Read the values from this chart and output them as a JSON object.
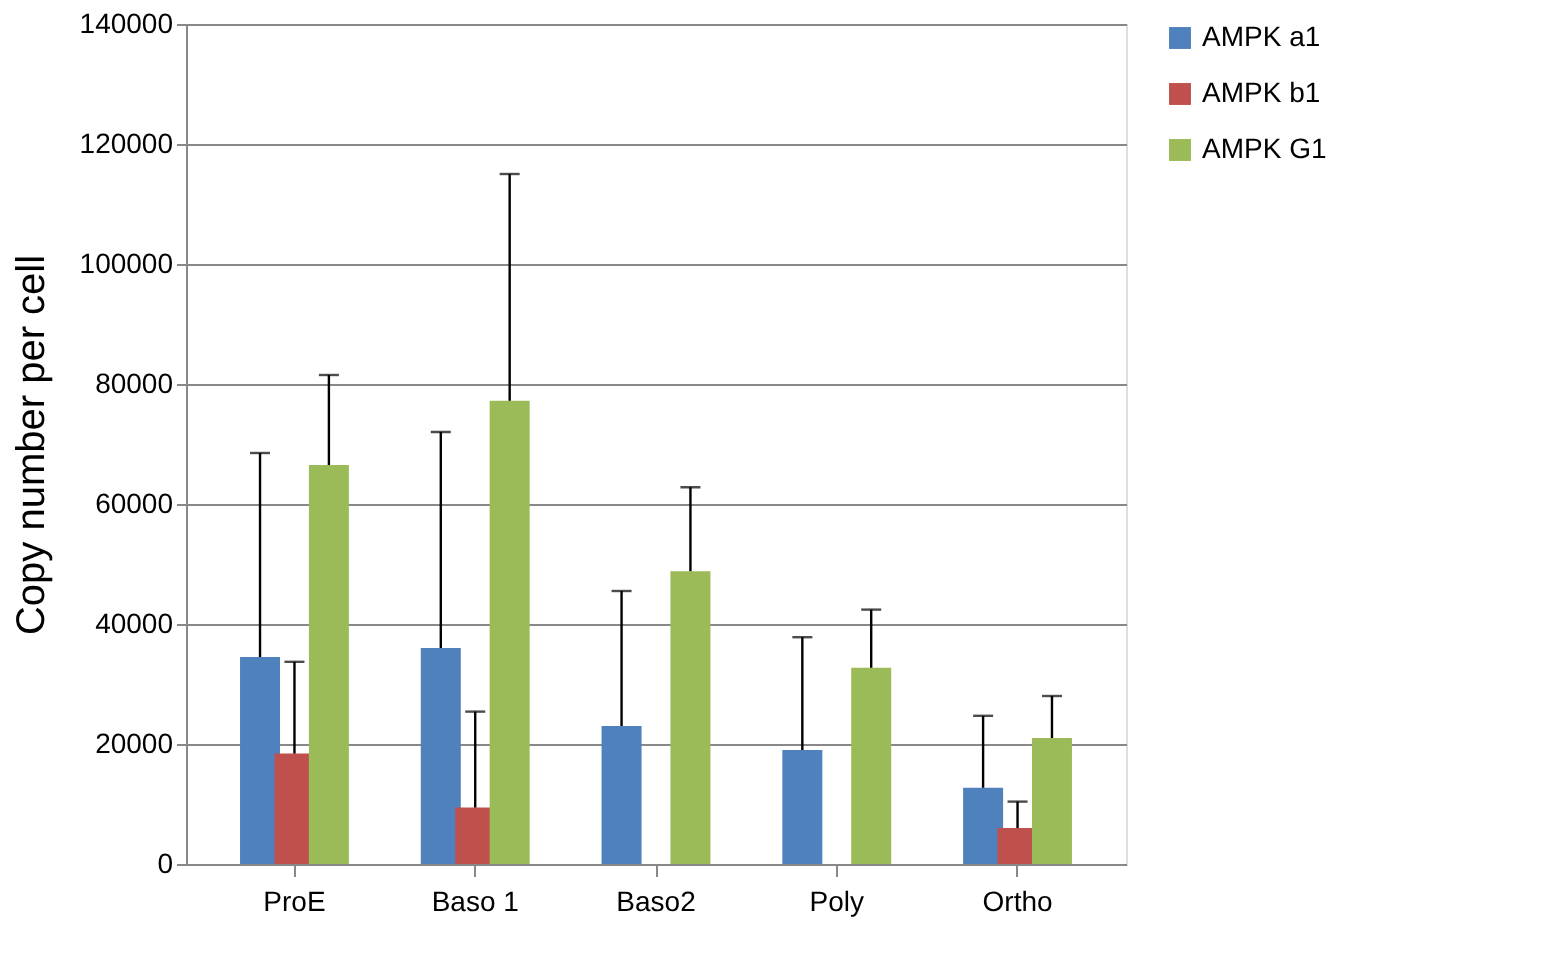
{
  "chart_data": {
    "type": "bar",
    "ylabel": "Copy number per cell",
    "categories": [
      "ProE",
      "Baso 1",
      "Baso2",
      "Poly",
      "Ortho"
    ],
    "series": [
      {
        "name": "AMPK a1",
        "color": "#4f81bd",
        "values": [
          34500,
          36000,
          23000,
          19000,
          12700
        ],
        "errors": [
          [
            34500,
            68500
          ],
          [
            36000,
            72000
          ],
          [
            23000,
            45500
          ],
          [
            19000,
            37800
          ],
          [
            12700,
            24700
          ]
        ]
      },
      {
        "name": "AMPK b1",
        "color": "#c0504d",
        "values": [
          18400,
          9400,
          null,
          null,
          6000
        ],
        "errors": [
          [
            18400,
            33700
          ],
          [
            9400,
            25400
          ],
          null,
          null,
          [
            6000,
            10400
          ]
        ]
      },
      {
        "name": "AMPK G1",
        "color": "#9bbb59",
        "values": [
          66500,
          77200,
          48800,
          32700,
          21000
        ],
        "errors": [
          [
            66500,
            81500
          ],
          [
            77200,
            115000
          ],
          [
            48800,
            62800
          ],
          [
            32700,
            42400
          ],
          [
            21000,
            28000
          ]
        ]
      }
    ],
    "ylim": [
      0,
      140000
    ],
    "yticks": [
      0,
      20000,
      40000,
      60000,
      80000,
      100000,
      120000,
      140000
    ],
    "grid": "y",
    "legend": "right"
  }
}
